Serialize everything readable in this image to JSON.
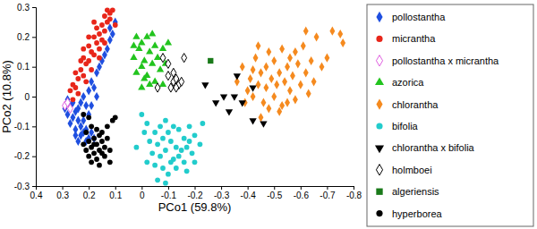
{
  "chart_data": {
    "type": "scatter",
    "x_label": "PCo1 (59.8%)",
    "y_label": "PCo2 (10.8%)",
    "xlim": [
      0.4,
      -0.8
    ],
    "xticks": [
      0.4,
      0.3,
      0.2,
      0.1,
      0,
      -0.1,
      -0.2,
      -0.3,
      -0.4,
      -0.5,
      -0.6,
      -0.7,
      -0.8
    ],
    "ylim": [
      -0.3,
      0.3
    ],
    "yticks": [
      -0.3,
      -0.2,
      -0.1,
      0,
      0.1,
      0.2,
      0.3
    ],
    "legend": "right",
    "series": [
      {
        "name": "pollostantha",
        "color": "#1f4fe0",
        "marker": "diamond",
        "x": [
          0.29,
          0.28,
          0.27,
          0.26,
          0.25,
          0.27,
          0.24,
          0.25,
          0.23,
          0.22,
          0.21,
          0.23,
          0.2,
          0.19,
          0.21,
          0.18,
          0.22,
          0.24,
          0.26,
          0.23,
          0.2,
          0.22,
          0.2,
          0.19,
          0.18,
          0.17,
          0.16,
          0.15,
          0.14,
          0.13,
          0.12,
          0.11,
          0.12,
          0.1,
          0.19,
          0.21,
          0.25,
          0.17,
          0.28,
          0.24
        ],
        "values": [
          -0.04,
          -0.06,
          -0.03,
          -0.07,
          -0.05,
          -0.09,
          -0.08,
          -0.11,
          -0.1,
          -0.12,
          -0.11,
          -0.13,
          -0.14,
          -0.12,
          -0.15,
          -0.14,
          -0.08,
          -0.04,
          -0.02,
          -0.02,
          -0.06,
          0.0,
          0.02,
          0.05,
          0.03,
          0.08,
          0.1,
          0.12,
          0.14,
          0.16,
          0.19,
          0.21,
          0.23,
          0.25,
          -0.03,
          -0.03,
          -0.13,
          0.0,
          -0.01,
          -0.15
        ]
      },
      {
        "name": "micrantha",
        "color": "#e8261a",
        "marker": "circle",
        "x": [
          0.27,
          0.26,
          0.25,
          0.24,
          0.25,
          0.23,
          0.22,
          0.21,
          0.22,
          0.2,
          0.19,
          0.2,
          0.18,
          0.17,
          0.18,
          0.16,
          0.15,
          0.17,
          0.15,
          0.14,
          0.13,
          0.14,
          0.12,
          0.11,
          0.13,
          0.12,
          0.16,
          0.21,
          0.23,
          0.19,
          0.24,
          0.26,
          0.2,
          0.18,
          0.1,
          0.16,
          0.22,
          0.14
        ],
        "values": [
          0.02,
          0.04,
          0.03,
          0.06,
          0.08,
          0.09,
          0.07,
          0.11,
          0.13,
          0.12,
          0.15,
          0.17,
          0.14,
          0.18,
          0.2,
          0.21,
          0.19,
          0.23,
          0.24,
          0.22,
          0.25,
          0.27,
          0.26,
          0.29,
          0.29,
          0.28,
          0.16,
          0.05,
          0.12,
          0.09,
          0.01,
          -0.01,
          0.2,
          0.25,
          0.24,
          0.13,
          0.16,
          0.18
        ]
      },
      {
        "name": "pollostantha x micrantha",
        "color": "#e060e0",
        "marker": "diamond-open",
        "x": [
          0.29,
          0.28,
          0.27
        ],
        "values": [
          -0.03,
          -0.02,
          -0.04
        ]
      },
      {
        "name": "azorica",
        "color": "#22c41e",
        "marker": "triangle",
        "x": [
          0.02,
          0.0,
          -0.02,
          0.01,
          -0.03,
          0.03,
          -0.01,
          0.0,
          -0.04,
          0.02,
          -0.02,
          -0.05,
          -0.06,
          -0.08,
          -0.07,
          -0.03,
          0.0,
          -0.05,
          -0.09,
          -0.1,
          -0.04,
          0.03,
          -0.01,
          -0.08
        ],
        "values": [
          0.2,
          0.18,
          0.2,
          0.16,
          0.15,
          0.13,
          0.12,
          0.1,
          0.11,
          0.08,
          0.07,
          0.17,
          0.13,
          0.16,
          0.09,
          0.04,
          0.03,
          0.05,
          0.11,
          0.18,
          0.21,
          0.17,
          0.06,
          0.04
        ]
      },
      {
        "name": "chlorantha",
        "color": "#f58a1f",
        "marker": "diamond",
        "x": [
          -0.36,
          -0.38,
          -0.4,
          -0.41,
          -0.42,
          -0.43,
          -0.44,
          -0.45,
          -0.46,
          -0.47,
          -0.47,
          -0.48,
          -0.49,
          -0.5,
          -0.5,
          -0.51,
          -0.52,
          -0.53,
          -0.53,
          -0.54,
          -0.55,
          -0.56,
          -0.56,
          -0.57,
          -0.58,
          -0.59,
          -0.6,
          -0.61,
          -0.62,
          -0.63,
          -0.64,
          -0.65,
          -0.66,
          -0.68,
          -0.7,
          -0.72,
          -0.75,
          -0.76,
          -0.45,
          -0.52,
          -0.39,
          -0.44,
          -0.58,
          -0.48,
          -0.62,
          -0.42,
          -0.55
        ],
        "values": [
          0.05,
          0.1,
          0.02,
          0.06,
          0.0,
          0.13,
          0.04,
          0.08,
          -0.02,
          0.1,
          0.03,
          0.15,
          0.06,
          0.0,
          0.12,
          0.04,
          0.08,
          -0.03,
          0.16,
          0.05,
          0.1,
          0.02,
          0.13,
          0.07,
          -0.01,
          0.11,
          0.04,
          0.17,
          0.08,
          0.01,
          0.12,
          0.05,
          0.2,
          0.1,
          0.13,
          0.22,
          0.21,
          0.18,
          -0.07,
          -0.05,
          -0.02,
          0.17,
          0.15,
          -0.04,
          0.22,
          0.09,
          -0.02
        ]
      },
      {
        "name": "bifolia",
        "color": "#22cccc",
        "marker": "circle",
        "x": [
          0.0,
          -0.02,
          -0.05,
          -0.07,
          -0.09,
          -0.1,
          -0.12,
          -0.14,
          -0.16,
          -0.18,
          -0.2,
          -0.22,
          -0.03,
          -0.06,
          -0.08,
          -0.11,
          -0.13,
          -0.15,
          -0.17,
          -0.19,
          -0.04,
          -0.07,
          -0.09,
          -0.12,
          -0.14,
          -0.16,
          -0.05,
          -0.08,
          -0.11,
          -0.1,
          -0.13,
          -0.06,
          -0.02,
          0.02,
          -0.2,
          -0.23,
          -0.18,
          -0.01,
          -0.09,
          -0.17
        ],
        "values": [
          -0.06,
          -0.09,
          -0.12,
          -0.1,
          -0.08,
          -0.12,
          -0.1,
          -0.11,
          -0.14,
          -0.1,
          -0.13,
          -0.16,
          -0.15,
          -0.16,
          -0.14,
          -0.15,
          -0.17,
          -0.18,
          -0.17,
          -0.19,
          -0.19,
          -0.2,
          -0.18,
          -0.21,
          -0.2,
          -0.22,
          -0.23,
          -0.24,
          -0.22,
          -0.26,
          -0.24,
          -0.28,
          -0.22,
          -0.17,
          -0.22,
          -0.09,
          -0.15,
          -0.12,
          -0.29,
          -0.25
        ]
      },
      {
        "name": "chlorantha x bifolia",
        "color": "#000000",
        "marker": "triangle-down",
        "x": [
          -0.24,
          -0.28,
          -0.31,
          -0.33,
          -0.36,
          -0.38,
          -0.42,
          -0.46,
          -0.42,
          -0.35
        ],
        "values": [
          0.04,
          -0.02,
          0.0,
          -0.05,
          0.07,
          -0.02,
          -0.08,
          -0.09,
          0.03,
          0.0
        ]
      },
      {
        "name": "holmboei",
        "color": "#000000",
        "marker": "diamond-open",
        "x": [
          -0.08,
          -0.1,
          -0.12,
          -0.11,
          -0.13,
          -0.14,
          -0.12,
          -0.15,
          -0.16,
          -0.06,
          -0.1,
          -0.13
        ],
        "values": [
          0.13,
          0.07,
          0.05,
          0.03,
          0.06,
          0.04,
          0.08,
          0.05,
          0.13,
          0.03,
          0.11,
          0.03
        ]
      },
      {
        "name": "algeriensis",
        "color": "#1a7a1a",
        "marker": "square",
        "x": [
          -0.26
        ],
        "values": [
          0.12
        ]
      },
      {
        "name": "hyperborea",
        "color": "#000000",
        "marker": "circle",
        "x": [
          0.2,
          0.22,
          0.19,
          0.17,
          0.21,
          0.16,
          0.18,
          0.15,
          0.2,
          0.17,
          0.14,
          0.19,
          0.16,
          0.13,
          0.18,
          0.15,
          0.2,
          0.17,
          0.14,
          0.19,
          0.16,
          0.12,
          0.11,
          0.1,
          0.13,
          0.21,
          0.15,
          0.18,
          0.22,
          0.12
        ],
        "values": [
          -0.07,
          -0.06,
          -0.1,
          -0.11,
          -0.12,
          -0.13,
          -0.14,
          -0.15,
          -0.15,
          -0.16,
          -0.17,
          -0.17,
          -0.18,
          -0.14,
          -0.19,
          -0.19,
          -0.2,
          -0.21,
          -0.2,
          -0.22,
          -0.23,
          -0.18,
          -0.08,
          -0.07,
          -0.1,
          -0.18,
          -0.12,
          -0.16,
          -0.16,
          -0.22
        ]
      }
    ]
  }
}
